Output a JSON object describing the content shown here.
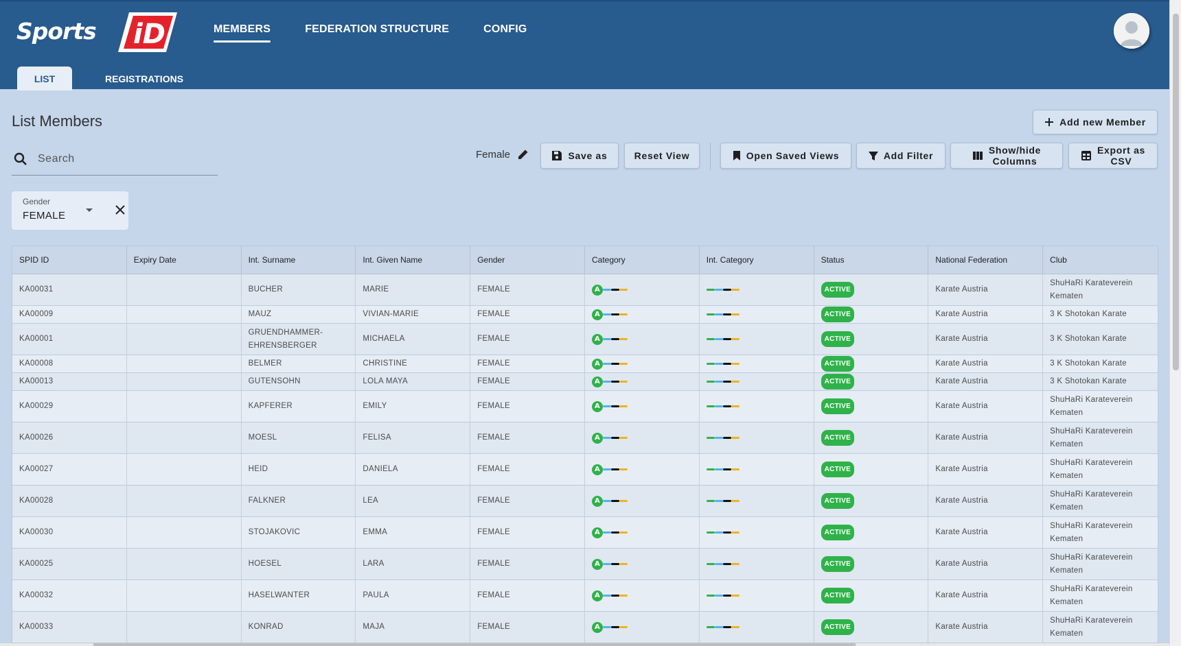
{
  "app": {
    "logo_text": "Sports",
    "logo_badge": "iD",
    "nav": [
      "MEMBERS",
      "FEDERATION STRUCTURE",
      "CONFIG"
    ],
    "active_nav": "MEMBERS",
    "subtabs": [
      "LIST",
      "REGISTRATIONS"
    ],
    "active_subtab": "LIST"
  },
  "colors": {
    "header": "#285b8e",
    "background": "#c5d5ea",
    "active_badge": "#2fb24a",
    "logo_red": "#e4222b"
  },
  "page": {
    "title": "List Members",
    "search_placeholder": "Search",
    "view_name": "Female",
    "buttons": {
      "add_member": "Add new Member",
      "save_as": "Save as",
      "reset_view": "Reset View",
      "open_saved_views": "Open Saved Views",
      "add_filter": "Add Filter",
      "show_hide_1": "Show/hide",
      "show_hide_2": "Columns",
      "export_1": "Export as",
      "export_2": "CSV"
    },
    "filter": {
      "label": "Gender",
      "value": "FEMALE"
    }
  },
  "table": {
    "columns": [
      "SPID ID",
      "Expiry Date",
      "Int. Surname",
      "Int. Given Name",
      "Gender",
      "Category",
      "Int. Category",
      "Status",
      "National Federation",
      "Club"
    ],
    "category_badge": "A",
    "rows": [
      {
        "id": "KA00031",
        "expiry": "",
        "surname": "BUCHER",
        "given": "MARIE",
        "gender": "FEMALE",
        "status": "ACTIVE",
        "federation": "Karate Austria",
        "club": "ShuHaRi Karateverein Kematen"
      },
      {
        "id": "KA00009",
        "expiry": "",
        "surname": "MAUZ",
        "given": "VIVIAN-MARIE",
        "gender": "FEMALE",
        "status": "ACTIVE",
        "federation": "Karate Austria",
        "club": "3 K Shotokan Karate"
      },
      {
        "id": "KA00001",
        "expiry": "",
        "surname": "GRUENDHAMMER-EHRENSBERGER",
        "given": "MICHAELA",
        "gender": "FEMALE",
        "status": "ACTIVE",
        "federation": "Karate Austria",
        "club": "3 K Shotokan Karate"
      },
      {
        "id": "KA00008",
        "expiry": "",
        "surname": "BELMER",
        "given": "CHRISTINE",
        "gender": "FEMALE",
        "status": "ACTIVE",
        "federation": "Karate Austria",
        "club": "3 K Shotokan Karate"
      },
      {
        "id": "KA00013",
        "expiry": "",
        "surname": "GUTENSOHN",
        "given": "LOLA MAYA",
        "gender": "FEMALE",
        "status": "ACTIVE",
        "federation": "Karate Austria",
        "club": "3 K Shotokan Karate"
      },
      {
        "id": "KA00029",
        "expiry": "",
        "surname": "KAPFERER",
        "given": "EMILY",
        "gender": "FEMALE",
        "status": "ACTIVE",
        "federation": "Karate Austria",
        "club": "ShuHaRi Karateverein Kematen"
      },
      {
        "id": "KA00026",
        "expiry": "",
        "surname": "MOESL",
        "given": "FELISA",
        "gender": "FEMALE",
        "status": "ACTIVE",
        "federation": "Karate Austria",
        "club": "ShuHaRi Karateverein Kematen"
      },
      {
        "id": "KA00027",
        "expiry": "",
        "surname": "HEID",
        "given": "DANIELA",
        "gender": "FEMALE",
        "status": "ACTIVE",
        "federation": "Karate Austria",
        "club": "ShuHaRi Karateverein Kematen"
      },
      {
        "id": "KA00028",
        "expiry": "",
        "surname": "FALKNER",
        "given": "LEA",
        "gender": "FEMALE",
        "status": "ACTIVE",
        "federation": "Karate Austria",
        "club": "ShuHaRi Karateverein Kematen"
      },
      {
        "id": "KA00030",
        "expiry": "",
        "surname": "STOJAKOVIC",
        "given": "EMMA",
        "gender": "FEMALE",
        "status": "ACTIVE",
        "federation": "Karate Austria",
        "club": "ShuHaRi Karateverein Kematen"
      },
      {
        "id": "KA00025",
        "expiry": "",
        "surname": "HOESEL",
        "given": "LARA",
        "gender": "FEMALE",
        "status": "ACTIVE",
        "federation": "Karate Austria",
        "club": "ShuHaRi Karateverein Kematen"
      },
      {
        "id": "KA00032",
        "expiry": "",
        "surname": "HASELWANTER",
        "given": "PAULA",
        "gender": "FEMALE",
        "status": "ACTIVE",
        "federation": "Karate Austria",
        "club": "ShuHaRi Karateverein Kematen"
      },
      {
        "id": "KA00033",
        "expiry": "",
        "surname": "KONRAD",
        "given": "MAJA",
        "gender": "FEMALE",
        "status": "ACTIVE",
        "federation": "Karate Austria",
        "club": "ShuHaRi Karateverein Kematen"
      }
    ]
  }
}
